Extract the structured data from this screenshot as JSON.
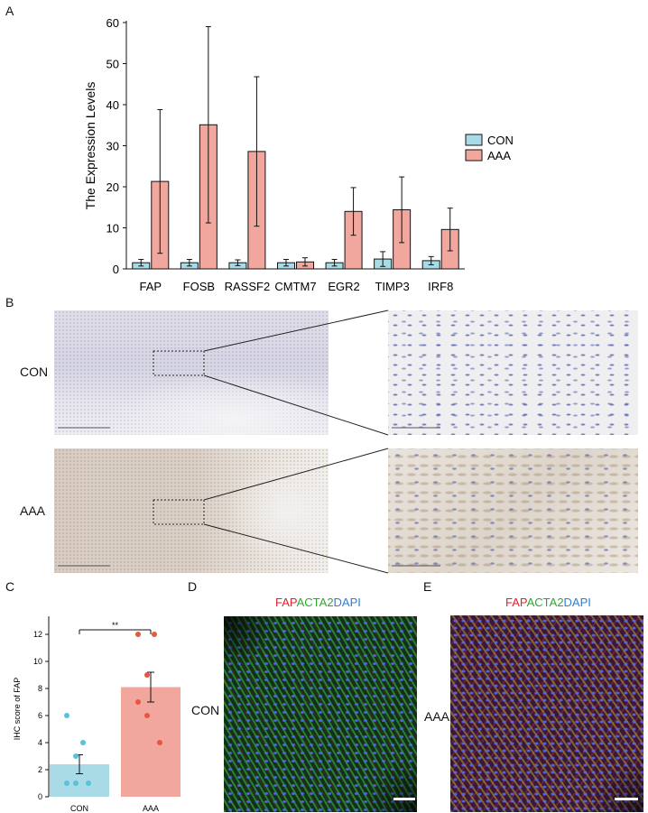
{
  "panels": {
    "a": "A",
    "b": "B",
    "c": "C",
    "d": "D",
    "e": "E"
  },
  "colors": {
    "con": "#a8dbe6",
    "aaa": "#f2a79e",
    "con_dot": "#5bc0dc",
    "aaa_dot": "#e8563f",
    "fap": "#e8202a",
    "acta2": "#2aa832",
    "dapi": "#2f7fd1"
  },
  "chart_data": [
    {
      "type": "bar",
      "ylabel": "The Expression Levels",
      "ylim": [
        0,
        60
      ],
      "yticks": [
        0,
        10,
        20,
        30,
        40,
        50,
        60
      ],
      "categories": [
        "FAP",
        "FOSB",
        "RASSF2",
        "CMTM7",
        "EGR2",
        "TIMP3",
        "IRF8"
      ],
      "series": [
        {
          "name": "CON",
          "values": [
            1.5,
            1.5,
            1.5,
            1.5,
            1.5,
            2.4,
            2.0
          ],
          "errors": [
            0.8,
            0.8,
            0.7,
            0.8,
            0.8,
            1.8,
            1.0
          ]
        },
        {
          "name": "AAA",
          "values": [
            21.3,
            35.1,
            28.6,
            1.7,
            14.0,
            14.4,
            9.6
          ],
          "errors": [
            17.5,
            23.9,
            18.2,
            1.0,
            5.8,
            8.0,
            5.2
          ]
        }
      ],
      "legend": "right"
    },
    {
      "type": "bar",
      "ylabel": "IHC score of FAP",
      "ylim": [
        0,
        13
      ],
      "yticks": [
        0,
        2,
        4,
        6,
        8,
        10,
        12
      ],
      "categories": [
        "CON",
        "AAA"
      ],
      "values": [
        2.4,
        8.1
      ],
      "errors": [
        0.7,
        1.1
      ],
      "points": [
        [
          6,
          4,
          3,
          1,
          1,
          1
        ],
        [
          12,
          12,
          9,
          7,
          6,
          4
        ]
      ],
      "significance": "**"
    }
  ],
  "panel_b": {
    "row_con": "CON",
    "row_aaa": "AAA"
  },
  "panel_d": {
    "row_label": "CON",
    "title_fap": "FAP",
    "title_acta2": "ACTA2",
    "title_dapi": "DAPI"
  },
  "panel_e": {
    "row_label": "AAA",
    "title_fap": "FAP",
    "title_acta2": "ACTA2",
    "title_dapi": "DAPI"
  }
}
